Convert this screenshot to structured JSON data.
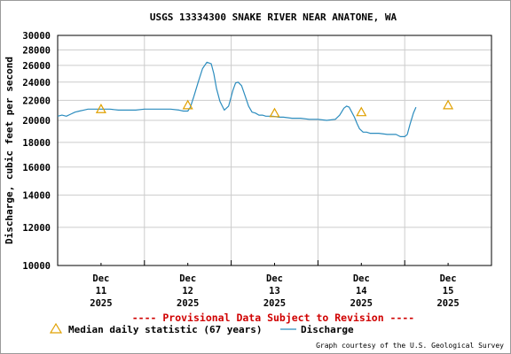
{
  "chart_data": {
    "type": "line",
    "title": "USGS 13334300 SNAKE RIVER NEAR ANATONE, WA",
    "ylabel": "Discharge, cubic feet per second",
    "xlabel": "",
    "yscale": "log",
    "ylim": [
      10000,
      30000
    ],
    "xlim": [
      10.5,
      15.5
    ],
    "grid": true,
    "y_ticks": [
      10000,
      12000,
      14000,
      16000,
      18000,
      20000,
      22000,
      24000,
      26000,
      28000,
      30000
    ],
    "y_tick_labels": [
      "10000",
      "12000",
      "14000",
      "16000",
      "18000",
      "20000",
      "22000",
      "24000",
      "26000",
      "28000",
      "30000"
    ],
    "x_ticks": [
      {
        "x": 11,
        "month": "Dec",
        "day": "11",
        "year": "2025"
      },
      {
        "x": 12,
        "month": "Dec",
        "day": "12",
        "year": "2025"
      },
      {
        "x": 13,
        "month": "Dec",
        "day": "13",
        "year": "2025"
      },
      {
        "x": 14,
        "month": "Dec",
        "day": "14",
        "year": "2025"
      },
      {
        "x": 15,
        "month": "Dec",
        "day": "15",
        "year": "2025"
      }
    ],
    "series": [
      {
        "name": "Discharge",
        "color": "#2b8cbe",
        "x": [
          10.5,
          10.55,
          10.6,
          10.65,
          10.7,
          10.75,
          10.8,
          10.85,
          10.9,
          11.0,
          11.1,
          11.2,
          11.3,
          11.4,
          11.5,
          11.6,
          11.7,
          11.8,
          11.9,
          11.95,
          12.0,
          12.03,
          12.07,
          12.12,
          12.17,
          12.22,
          12.27,
          12.3,
          12.33,
          12.37,
          12.42,
          12.47,
          12.52,
          12.55,
          12.58,
          12.62,
          12.66,
          12.7,
          12.74,
          12.78,
          12.82,
          12.86,
          12.9,
          12.94,
          12.98,
          13.05,
          13.1,
          13.2,
          13.3,
          13.4,
          13.5,
          13.6,
          13.7,
          13.75,
          13.8,
          13.83,
          13.86,
          13.89,
          13.92,
          13.95,
          13.98,
          14.02,
          14.06,
          14.1,
          14.15,
          14.2,
          14.3,
          14.4,
          14.45,
          14.5,
          14.53,
          14.56,
          14.6,
          14.63
        ],
        "y": [
          20400,
          20500,
          20400,
          20600,
          20800,
          20900,
          21000,
          21100,
          21100,
          21100,
          21100,
          21000,
          21000,
          21000,
          21100,
          21100,
          21100,
          21100,
          21000,
          20900,
          20900,
          21300,
          22400,
          24000,
          25600,
          26400,
          26200,
          25000,
          23300,
          21900,
          21000,
          21400,
          23100,
          23900,
          24000,
          23600,
          22500,
          21400,
          20800,
          20700,
          20500,
          20500,
          20400,
          20400,
          20400,
          20300,
          20300,
          20200,
          20200,
          20100,
          20100,
          20000,
          20100,
          20500,
          21200,
          21400,
          21300,
          20800,
          20300,
          19700,
          19200,
          18900,
          18900,
          18800,
          18800,
          18800,
          18700,
          18700,
          18500,
          18500,
          18700,
          19600,
          20700,
          21300
        ]
      },
      {
        "name": "Median daily statistic (67 years)",
        "marker": "triangle",
        "color": "#e0a000",
        "x": [
          11,
          12,
          13,
          14,
          15
        ],
        "y": [
          21100,
          21500,
          20700,
          20800,
          21500
        ]
      }
    ],
    "annotations": {
      "provisional": "---- Provisional Data Subject to Revision ----",
      "credit": "Graph courtesy of the U.S. Geological Survey"
    }
  },
  "legend": {
    "median_label": "Median daily statistic (67 years)",
    "discharge_label": "Discharge"
  }
}
